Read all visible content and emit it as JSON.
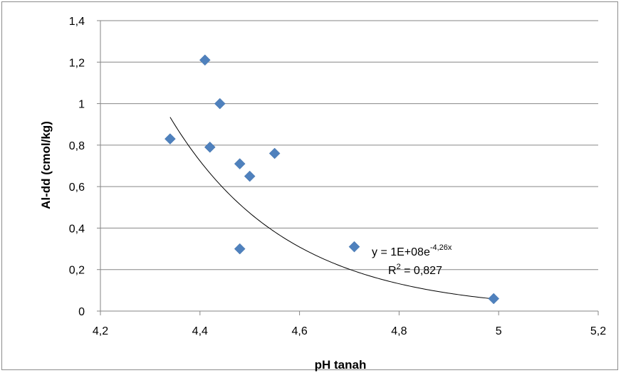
{
  "chart_data": {
    "type": "scatter",
    "xlabel": "pH tanah",
    "ylabel": "Al-dd (cmol/kg)",
    "xlim": [
      4.2,
      5.2
    ],
    "ylim": [
      0,
      1.4
    ],
    "x_ticks": [
      "4,2",
      "4,4",
      "4,6",
      "4,8",
      "5",
      "5,2"
    ],
    "y_ticks": [
      "0",
      "0,2",
      "0,4",
      "0,6",
      "0,8",
      "1",
      "1,2",
      "1,4"
    ],
    "grid": "horizontal",
    "series": [
      {
        "marker": "diamond",
        "color": "#4f81bd",
        "points": [
          {
            "x": 4.34,
            "y": 0.83
          },
          {
            "x": 4.41,
            "y": 1.21
          },
          {
            "x": 4.42,
            "y": 0.79
          },
          {
            "x": 4.44,
            "y": 1.0
          },
          {
            "x": 4.48,
            "y": 0.71
          },
          {
            "x": 4.48,
            "y": 0.3
          },
          {
            "x": 4.5,
            "y": 0.65
          },
          {
            "x": 4.55,
            "y": 0.76
          },
          {
            "x": 4.71,
            "y": 0.31
          },
          {
            "x": 4.99,
            "y": 0.06
          }
        ]
      }
    ],
    "trendline": {
      "type": "exponential",
      "coefficient": 100000000.0,
      "exponent": -4.26,
      "x_range": [
        4.34,
        4.99
      ],
      "color": "#000000"
    },
    "annotation": {
      "equation_base": "y = 1E+08e",
      "equation_exponent": "-4,26x",
      "r_squared_prefix": "R",
      "r_squared_sup": "2",
      "r_squared_value": " = 0,827"
    }
  }
}
